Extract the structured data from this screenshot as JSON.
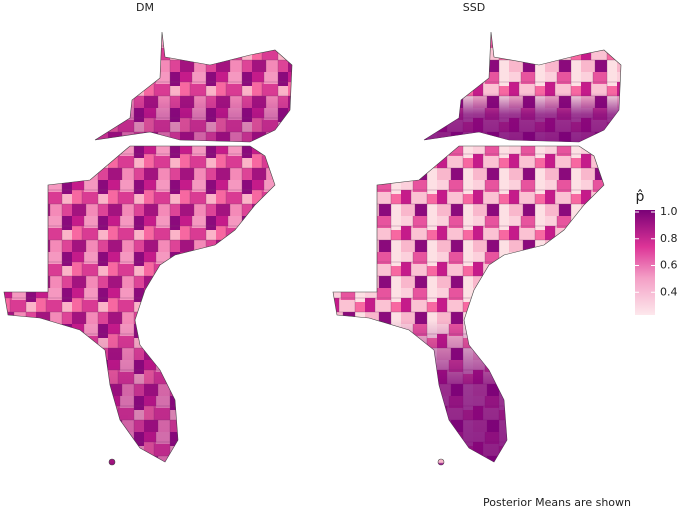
{
  "panels": [
    {
      "title": "DM"
    },
    {
      "title": "SSD"
    }
  ],
  "legend": {
    "title": "p̂",
    "limits": [
      0.23,
      1.015
    ],
    "ticks": [
      0.4,
      0.6,
      0.8,
      {
        "value": 1,
        "label": "1.0"
      }
    ]
  },
  "caption": "Posterior Means are shown"
}
